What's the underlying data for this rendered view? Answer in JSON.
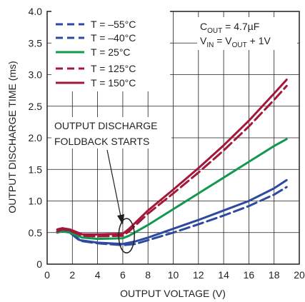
{
  "chart_data": {
    "type": "line",
    "xlabel": "OUTPUT VOLTAGE (V)",
    "ylabel": "OUTPUT DISCHARGE TIME (ms)",
    "xlim": [
      0,
      20
    ],
    "ylim": [
      0,
      4.0
    ],
    "xticks": [
      "0",
      "2",
      "4",
      "6",
      "8",
      "10",
      "12",
      "14",
      "16",
      "18",
      "20"
    ],
    "yticks": [
      "0",
      "0.5",
      "1.0",
      "1.5",
      "2.0",
      "2.5",
      "3.0",
      "3.5",
      "4.0"
    ],
    "grid": true,
    "legend_position": "top-left",
    "conditions": {
      "line1": {
        "pre": "C",
        "sub": "OUT",
        "post": " = 4.7µF"
      },
      "line2": {
        "p1": "V",
        "s1": "IN",
        "p2": " = V",
        "s2": "OUT",
        "p3": " + 1V"
      }
    },
    "annotation": {
      "line1": "OUTPUT DISCHARGE",
      "line2": "FOLDBACK STARTS",
      "circle_center": [
        6.3,
        0.45
      ]
    },
    "series": [
      {
        "name": "T = –55°C",
        "color": "#2e4a9e",
        "dash": true,
        "points": [
          [
            0.8,
            0.5
          ],
          [
            1.2,
            0.53
          ],
          [
            1.8,
            0.5
          ],
          [
            2.6,
            0.37
          ],
          [
            4,
            0.33
          ],
          [
            6,
            0.3
          ],
          [
            7,
            0.32
          ],
          [
            8,
            0.38
          ],
          [
            10,
            0.5
          ],
          [
            12,
            0.63
          ],
          [
            14,
            0.77
          ],
          [
            16,
            0.92
          ],
          [
            18,
            1.1
          ],
          [
            19,
            1.22
          ]
        ]
      },
      {
        "name": "T = –40°C",
        "color": "#2e4a9e",
        "dash": false,
        "points": [
          [
            0.8,
            0.52
          ],
          [
            1.2,
            0.55
          ],
          [
            1.8,
            0.52
          ],
          [
            2.6,
            0.38
          ],
          [
            4,
            0.34
          ],
          [
            6,
            0.32
          ],
          [
            7,
            0.36
          ],
          [
            8,
            0.42
          ],
          [
            10,
            0.56
          ],
          [
            12,
            0.7
          ],
          [
            14,
            0.85
          ],
          [
            16,
            1.0
          ],
          [
            18,
            1.2
          ],
          [
            19,
            1.33
          ]
        ]
      },
      {
        "name": "T = 25°C",
        "color": "#12994e",
        "dash": false,
        "points": [
          [
            0.8,
            0.5
          ],
          [
            1.2,
            0.52
          ],
          [
            1.8,
            0.5
          ],
          [
            2.8,
            0.42
          ],
          [
            4,
            0.4
          ],
          [
            6,
            0.41
          ],
          [
            6.5,
            0.45
          ],
          [
            8,
            0.62
          ],
          [
            10,
            0.87
          ],
          [
            12,
            1.12
          ],
          [
            14,
            1.37
          ],
          [
            16,
            1.62
          ],
          [
            18,
            1.87
          ],
          [
            19,
            1.98
          ]
        ]
      },
      {
        "name": "T = 125°C",
        "color": "#a3183a",
        "dash": true,
        "points": [
          [
            0.8,
            0.52
          ],
          [
            1.2,
            0.55
          ],
          [
            1.8,
            0.53
          ],
          [
            2.8,
            0.45
          ],
          [
            4,
            0.44
          ],
          [
            6,
            0.45
          ],
          [
            6.5,
            0.52
          ],
          [
            8,
            0.8
          ],
          [
            10,
            1.12
          ],
          [
            12,
            1.45
          ],
          [
            14,
            1.8
          ],
          [
            16,
            2.18
          ],
          [
            18,
            2.6
          ],
          [
            19,
            2.82
          ]
        ]
      },
      {
        "name": "T = 150°C",
        "color": "#a3183a",
        "dash": false,
        "points": [
          [
            0.8,
            0.55
          ],
          [
            1.2,
            0.57
          ],
          [
            1.8,
            0.55
          ],
          [
            2.8,
            0.47
          ],
          [
            4,
            0.47
          ],
          [
            6,
            0.48
          ],
          [
            6.5,
            0.56
          ],
          [
            8,
            0.85
          ],
          [
            10,
            1.18
          ],
          [
            12,
            1.52
          ],
          [
            14,
            1.88
          ],
          [
            16,
            2.27
          ],
          [
            18,
            2.7
          ],
          [
            19,
            2.92
          ]
        ]
      }
    ]
  }
}
